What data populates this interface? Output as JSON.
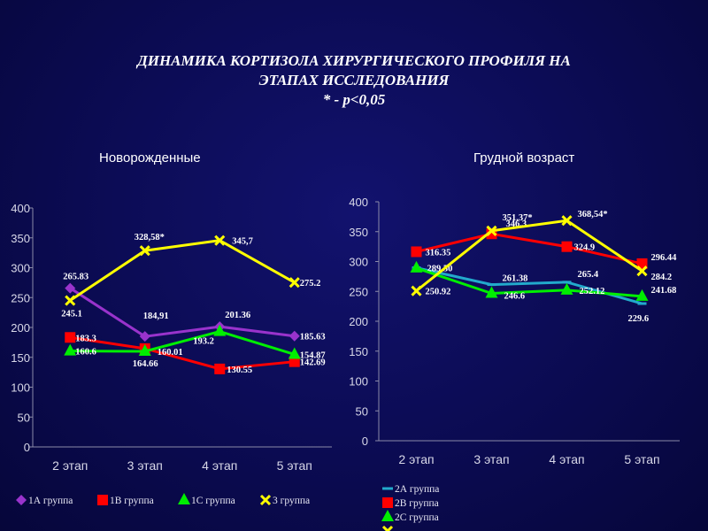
{
  "title": {
    "line1": "ДИНАМИКА КОРТИЗОЛА ХИРУРГИЧЕСКОГО ПРОФИЛЯ НА",
    "line2": "ЭТАПАХ ИССЛЕДОВАНИЯ",
    "line3": "* - р<0,05"
  },
  "chart_data": [
    {
      "type": "line",
      "title": "Новорожденные",
      "categories": [
        "2 этап",
        "3 этап",
        "4 этап",
        "5 этап"
      ],
      "yticks": [
        "400",
        "350",
        "300",
        "250",
        "200",
        "150",
        "100",
        "50",
        "0"
      ],
      "ylim": [
        0,
        400
      ],
      "grid": false,
      "legend_position": "bottom",
      "series": [
        {
          "name": "1А группа",
          "color": "#9933cc",
          "marker": "diamond",
          "values": [
            265.83,
            184.91,
            201.36,
            185.63
          ],
          "labels": [
            "265.83",
            "184,91",
            "201.36",
            "185.63"
          ]
        },
        {
          "name": "1В группа",
          "color": "#ff0000",
          "marker": "square",
          "values": [
            183.3,
            164.66,
            130.55,
            142.69
          ],
          "labels": [
            "183.3",
            "164.66",
            "130.55",
            "142.69"
          ]
        },
        {
          "name": "1С группа",
          "color": "#00ee00",
          "marker": "triangle",
          "values": [
            160.6,
            160.01,
            193.2,
            154.87
          ],
          "labels": [
            "160.6",
            "160.01",
            "193.2",
            "154.87"
          ]
        },
        {
          "name": "3 группа",
          "color": "#ffff00",
          "marker": "x",
          "values": [
            245.1,
            328.58,
            345.7,
            275.2
          ],
          "labels": [
            "245.1",
            "328,58*",
            "345,7",
            "275.2"
          ]
        }
      ]
    },
    {
      "type": "line",
      "title": "Грудной возраст",
      "categories": [
        "2 этап",
        "3 этап",
        "4 этап",
        "5 этап"
      ],
      "yticks": [
        "400",
        "350",
        "300",
        "250",
        "200",
        "150",
        "100",
        "50",
        "0"
      ],
      "ylim": [
        0,
        400
      ],
      "grid": false,
      "legend_position": "bottom",
      "series": [
        {
          "name": "2А группа",
          "color": "#22aacc",
          "marker": "dash",
          "values": [
            289.5,
            261.38,
            265.4,
            229.6
          ],
          "labels": [
            "289.50",
            "261.38",
            "265.4",
            "229.6"
          ]
        },
        {
          "name": "2В группа",
          "color": "#ff0000",
          "marker": "square",
          "values": [
            316.35,
            346.3,
            324.9,
            296.44
          ],
          "labels": [
            "316.35",
            "346.3",
            "324.9",
            "296.44"
          ]
        },
        {
          "name": "2С группа",
          "color": "#00ee00",
          "marker": "triangle",
          "values": [
            289.0,
            246.6,
            252.12,
            241.68
          ],
          "labels": [
            "",
            "246.6",
            "252.12",
            "241.68"
          ]
        },
        {
          "name": "",
          "color": "#ffff00",
          "marker": "x",
          "values": [
            250.92,
            351.37,
            368.54,
            284.2
          ],
          "labels": [
            "250.92",
            "351,37*",
            "368,54*",
            "284.2"
          ]
        }
      ]
    }
  ]
}
